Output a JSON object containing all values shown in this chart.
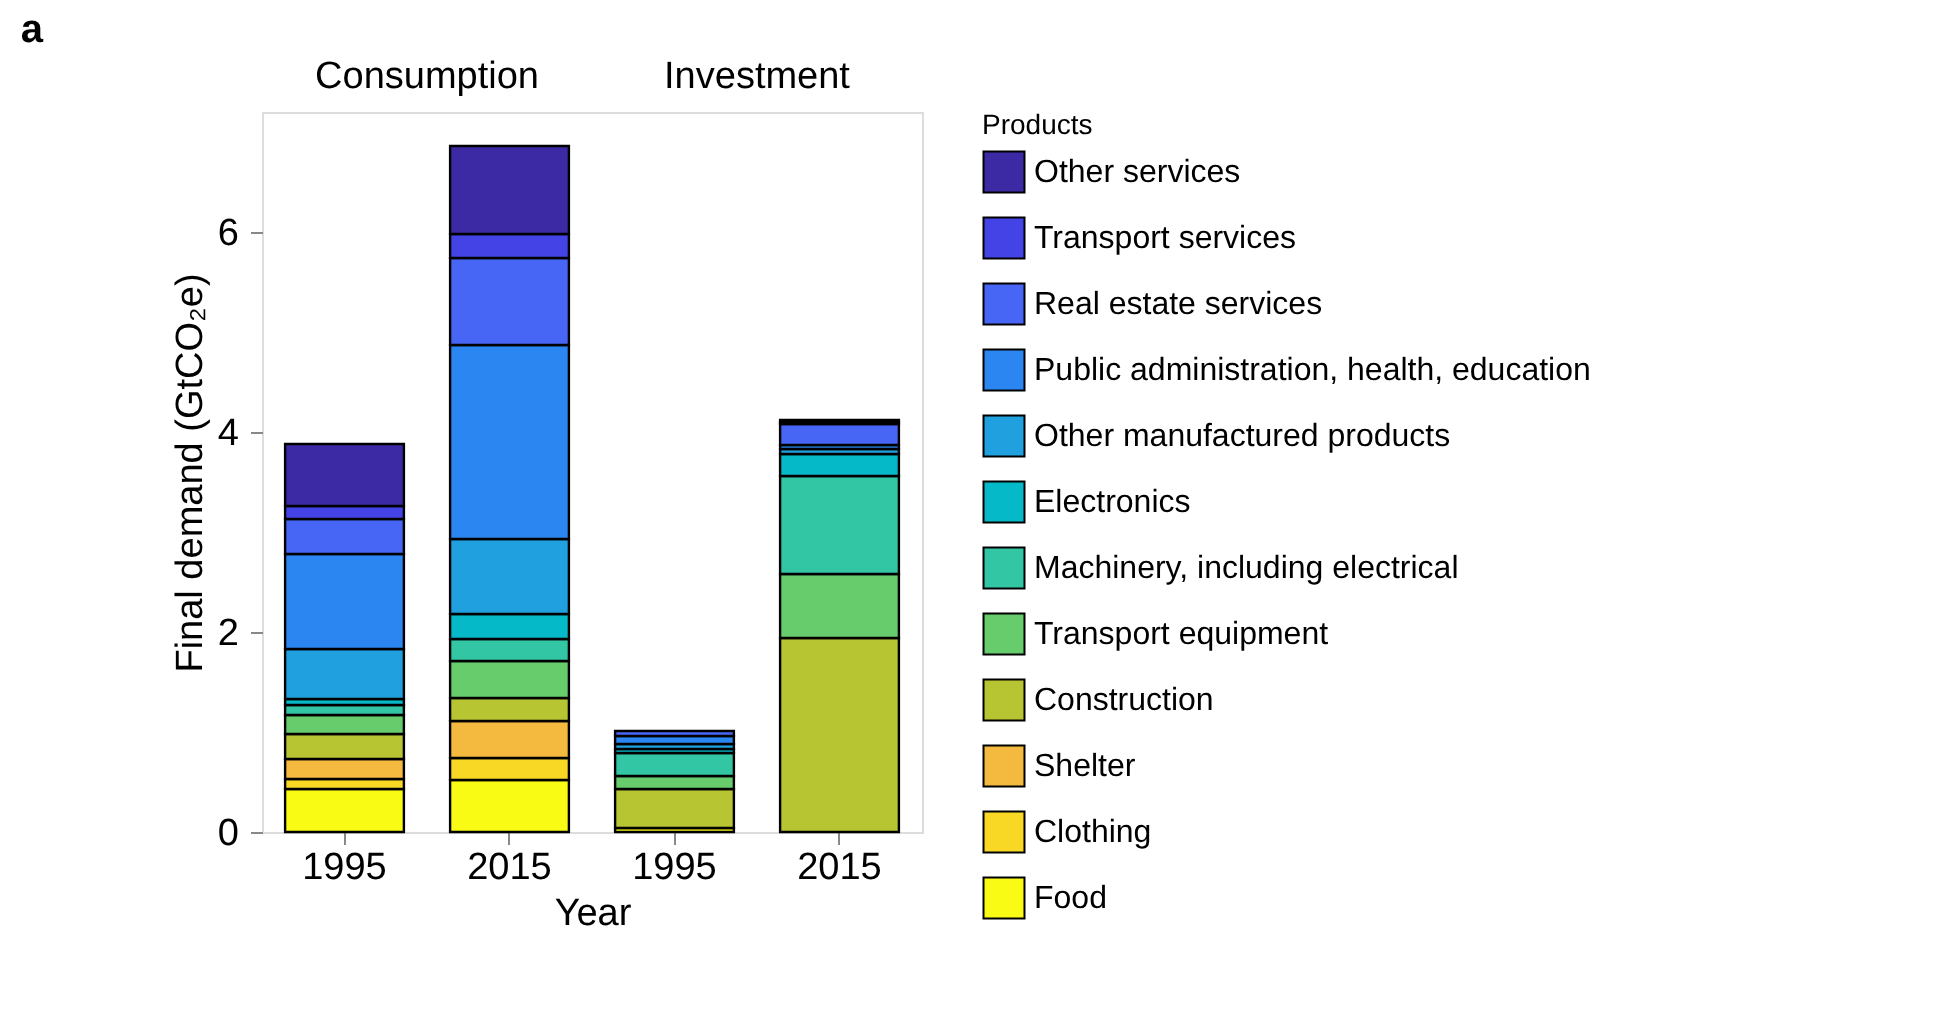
{
  "chart_data": {
    "type": "bar",
    "title": "a",
    "stacked": true,
    "categories": [
      "1995",
      "2015",
      "1995",
      "2015"
    ],
    "annotations": [
      "Consumption",
      "Investment"
    ],
    "xlabel": "Year",
    "ylabel": "Final demand (GtCO₂e)",
    "legend_title": "Products",
    "ylim": [
      0,
      7.2
    ],
    "yticks": [
      0,
      2,
      4,
      6
    ],
    "grid": false,
    "legend": "right",
    "series": [
      {
        "name": "Food",
        "color": "#f9fb15",
        "values": [
          0.43,
          0.52,
          0.04,
          null
        ]
      },
      {
        "name": "Clothing",
        "color": "#f9d725",
        "values": [
          0.1,
          0.22,
          null,
          null
        ]
      },
      {
        "name": "Shelter",
        "color": "#f4b93f",
        "values": [
          0.2,
          0.37,
          null,
          null
        ]
      },
      {
        "name": "Construction",
        "color": "#b8c532",
        "values": [
          0.25,
          0.23,
          0.39,
          1.94
        ]
      },
      {
        "name": "Transport equipment",
        "color": "#66cc6c",
        "values": [
          0.19,
          0.37,
          0.13,
          0.64
        ]
      },
      {
        "name": "Machinery, including electrical",
        "color": "#33c6a4",
        "values": [
          0.1,
          0.22,
          0.23,
          0.98
        ]
      },
      {
        "name": "Electronics",
        "color": "#06b9c8",
        "values": [
          0.06,
          0.25,
          0.04,
          0.22
        ]
      },
      {
        "name": "Other manufactured products",
        "color": "#21a0df",
        "values": [
          0.5,
          0.75,
          0.05,
          0.05
        ]
      },
      {
        "name": "Public administration, health, education",
        "color": "#2b86f1",
        "values": [
          0.95,
          1.94,
          0.08,
          0.04
        ]
      },
      {
        "name": "Real estate services",
        "color": "#4866f5",
        "values": [
          0.35,
          0.87,
          0.05,
          0.21
        ]
      },
      {
        "name": "Transport services",
        "color": "#4343e6",
        "values": [
          0.13,
          0.24,
          0,
          0.02
        ]
      },
      {
        "name": "Other services",
        "color": "#3b2aa3",
        "values": [
          0.62,
          0.88,
          0,
          0.02
        ]
      }
    ]
  }
}
